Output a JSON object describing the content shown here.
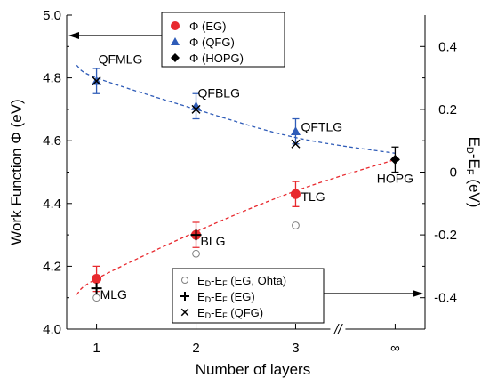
{
  "chart_data": {
    "type": "scatter",
    "xlabel": "Number of layers",
    "ylabel_left": "Work Function Φ (eV)",
    "ylabel_right": "E",
    "ylabel_right_sub": "D",
    "ylabel_right_mid": "-E",
    "ylabel_right_sub2": "F",
    "ylabel_right_unit": "(eV)",
    "x_ticks": [
      {
        "label": "1",
        "x": 1
      },
      {
        "label": "2",
        "x": 2
      },
      {
        "label": "3",
        "x": 3
      },
      {
        "label": "∞",
        "x": 4
      }
    ],
    "axis_break_mark": "//",
    "ylim_left": [
      4.0,
      5.0
    ],
    "ylim_right": [
      -0.5,
      0.5
    ],
    "y_ticks_left": [
      "4.0",
      "4.2",
      "4.4",
      "4.6",
      "4.8",
      "5.0"
    ],
    "y_ticks_right": [
      {
        "label": "-0.4",
        "v": -0.4
      },
      {
        "label": "-0.2",
        "v": -0.2
      },
      {
        "label": "0",
        "v": 0
      },
      {
        "label": "0.2",
        "v": 0.2
      },
      {
        "label": "0.4",
        "v": 0.4
      }
    ],
    "series": [
      {
        "name": "Φ (EG)",
        "marker": "circle",
        "color": "#e8292e",
        "points": [
          {
            "x": 1,
            "y": 4.16,
            "err": 0.04
          },
          {
            "x": 2,
            "y": 4.3,
            "err": 0.04
          },
          {
            "x": 3,
            "y": 4.43,
            "err": 0.04
          }
        ]
      },
      {
        "name": "Φ (QFG)",
        "marker": "triangle",
        "color": "#2f5cb8",
        "points": [
          {
            "x": 1,
            "y": 4.79,
            "err": 0.04
          },
          {
            "x": 2,
            "y": 4.71,
            "err": 0.04
          },
          {
            "x": 3,
            "y": 4.63,
            "err": 0.04
          }
        ]
      },
      {
        "name": "Φ (HOPG)",
        "marker": "diamond",
        "color": "#000000",
        "points": [
          {
            "x": 4,
            "y": 4.54,
            "err": 0.04
          }
        ]
      },
      {
        "name": "ED-EF (EG, Ohta)",
        "marker": "open-circle",
        "color": "#808080",
        "points": [
          {
            "x": 1,
            "y": 4.1
          },
          {
            "x": 2,
            "y": 4.24
          },
          {
            "x": 3,
            "y": 4.33
          }
        ]
      },
      {
        "name": "ED-EF (EG)",
        "marker": "plus",
        "color": "#000000",
        "points": [
          {
            "x": 1,
            "y": 4.13
          },
          {
            "x": 2,
            "y": 4.3
          }
        ]
      },
      {
        "name": "ED-EF (QFG)",
        "marker": "cross",
        "color": "#000000",
        "points": [
          {
            "x": 1,
            "y": 4.79
          },
          {
            "x": 2,
            "y": 4.7
          },
          {
            "x": 3,
            "y": 4.59
          }
        ]
      }
    ],
    "fits": [
      {
        "color": "#e8292e",
        "points": [
          [
            0.8,
            4.11
          ],
          [
            1,
            4.16
          ],
          [
            2,
            4.31
          ],
          [
            3,
            4.44
          ],
          [
            4,
            4.54
          ]
        ]
      },
      {
        "color": "#2f5cb8",
        "points": [
          [
            0.8,
            4.84
          ],
          [
            1,
            4.8
          ],
          [
            2,
            4.7
          ],
          [
            3,
            4.61
          ],
          [
            4,
            4.56
          ]
        ]
      }
    ],
    "point_labels": [
      {
        "text": "QFMLG",
        "x": 1,
        "y": 4.8
      },
      {
        "text": "QFBLG",
        "x": 2,
        "y": 4.71
      },
      {
        "text": "QFTLG",
        "x": 3,
        "y": 4.63
      },
      {
        "text": "TLG",
        "x": 3,
        "y": 4.43
      },
      {
        "text": "BLG",
        "x": 2,
        "y": 4.3
      },
      {
        "text": "MLG",
        "x": 1,
        "y": 4.13
      },
      {
        "text": "HOPG",
        "x": 4,
        "y": 4.54
      }
    ],
    "legend_top": {
      "placement": "top-center",
      "entries": [
        {
          "marker": "circle",
          "color": "#e8292e",
          "label": "Φ (EG)"
        },
        {
          "marker": "triangle",
          "color": "#2f5cb8",
          "label": "Φ (QFG)"
        },
        {
          "marker": "diamond",
          "color": "#000000",
          "label": "Φ (HOPG)"
        }
      ]
    },
    "legend_bottom": {
      "placement": "bottom-center",
      "entries": [
        {
          "marker": "open-circle",
          "color": "#808080",
          "pre": "E",
          "sub": "D",
          "mid": "-E",
          "sub2": "F",
          "post": " (EG, Ohta)"
        },
        {
          "marker": "plus",
          "color": "#000000",
          "pre": "E",
          "sub": "D",
          "mid": "-E",
          "sub2": "F",
          "post": " (EG)"
        },
        {
          "marker": "cross",
          "color": "#000000",
          "pre": "E",
          "sub": "D",
          "mid": "-E",
          "sub2": "F",
          "post": " (QFG)"
        }
      ]
    },
    "grid": false
  }
}
